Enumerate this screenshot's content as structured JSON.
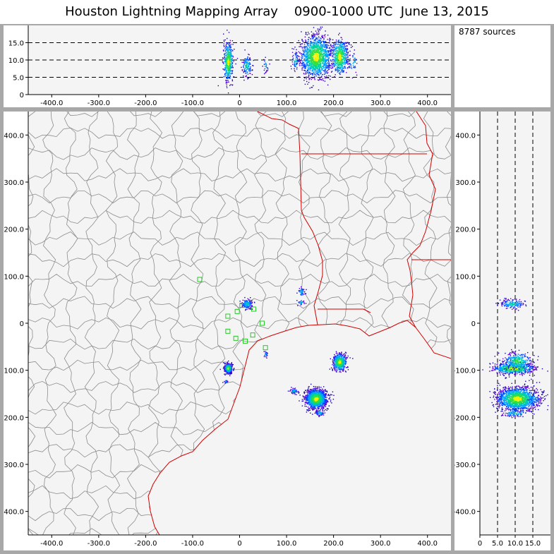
{
  "header": {
    "title": "Houston Lightning Mapping Array    0900-1000 UTC  June 13, 2015"
  },
  "stats": {
    "sources_label": "8787 sources"
  },
  "colors": {
    "panel_bg": "#ffffff",
    "plot_bg": "#f4f4f4",
    "frame": "#a8a8a8",
    "county_lines": "#8c8c8c",
    "state_coast_lines": "#d00000",
    "station_marker": "#22cc22",
    "density_scale": [
      "#1a00b0",
      "#5a00d8",
      "#0040ff",
      "#00a0ff",
      "#00d0a0",
      "#30e040",
      "#f0f000"
    ]
  },
  "chart_data": [
    {
      "name": "altitude-vs-east-west",
      "type": "scatter",
      "xlim": [
        -450,
        450
      ],
      "ylim": [
        0,
        20
      ],
      "x_ticks": [
        "-400.0",
        "-300.0",
        "-200.0",
        "-100.0",
        "0",
        "100.0",
        "200.0",
        "300.0",
        "400.0"
      ],
      "x_tick_values": [
        -400,
        -300,
        -200,
        -100,
        0,
        100,
        200,
        300,
        400
      ],
      "y_ticks": [
        "0",
        "5.0",
        "10.0",
        "15.0"
      ],
      "y_tick_values": [
        0,
        5,
        10,
        15
      ],
      "reference_lines_y": [
        5,
        10,
        15
      ],
      "clusters": [
        {
          "x": -25,
          "y": 9.5,
          "sx": 5,
          "sy": 2.8,
          "n": 500
        },
        {
          "x": 15,
          "y": 8.5,
          "sx": 5,
          "sy": 1.6,
          "n": 140
        },
        {
          "x": 55,
          "y": 8.5,
          "sx": 3,
          "sy": 1,
          "n": 30
        },
        {
          "x": 118,
          "y": 10,
          "sx": 4,
          "sy": 1.5,
          "n": 60
        },
        {
          "x": 162,
          "y": 11,
          "sx": 16,
          "sy": 3,
          "n": 1400
        },
        {
          "x": 212,
          "y": 11,
          "sx": 9,
          "sy": 2.5,
          "n": 550
        },
        {
          "x": 240,
          "y": 9.5,
          "sx": 6,
          "sy": 1.5,
          "n": 40
        }
      ]
    },
    {
      "name": "plan-view",
      "type": "scatter",
      "xlim": [
        -450,
        450
      ],
      "ylim": [
        -450,
        450
      ],
      "x_ticks": [
        "-400.0",
        "-300.0",
        "-200.0",
        "-100.0",
        "0",
        "100.0",
        "200.0",
        "300.0",
        "400.0"
      ],
      "x_tick_values": [
        -400,
        -300,
        -200,
        -100,
        0,
        100,
        200,
        300,
        400
      ],
      "y_ticks": [
        "-400.0",
        "-300.0",
        "-200.0",
        "-100.0",
        "0",
        "100.0",
        "200.0",
        "300.0",
        "400.0"
      ],
      "y_tick_values": [
        -400,
        -300,
        -200,
        -100,
        0,
        100,
        200,
        300,
        400
      ],
      "clusters": [
        {
          "x": -25,
          "y": -95,
          "sx": 4,
          "sy": 5,
          "n": 450
        },
        {
          "x": -30,
          "y": -123,
          "sx": 2,
          "sy": 2,
          "n": 25
        },
        {
          "x": 15,
          "y": 42,
          "sx": 6,
          "sy": 5,
          "n": 140
        },
        {
          "x": 55,
          "y": -65,
          "sx": 2,
          "sy": 3,
          "n": 25
        },
        {
          "x": 130,
          "y": 68,
          "sx": 4,
          "sy": 5,
          "n": 50
        },
        {
          "x": 130,
          "y": 45,
          "sx": 4,
          "sy": 3,
          "n": 30
        },
        {
          "x": 162,
          "y": -160,
          "sx": 11,
          "sy": 10,
          "n": 1500
        },
        {
          "x": 115,
          "y": -143,
          "sx": 4,
          "sy": 3,
          "n": 60
        },
        {
          "x": 212,
          "y": -82,
          "sx": 7,
          "sy": 9,
          "n": 550
        },
        {
          "x": 170,
          "y": -190,
          "sx": 5,
          "sy": 3,
          "n": 60
        }
      ],
      "stations": [
        {
          "x": -85,
          "y": 93
        },
        {
          "x": -25,
          "y": 15
        },
        {
          "x": -5,
          "y": 25
        },
        {
          "x": 5,
          "y": 38
        },
        {
          "x": 30,
          "y": 30
        },
        {
          "x": -25,
          "y": -17
        },
        {
          "x": -8,
          "y": -32
        },
        {
          "x": 12,
          "y": -38
        },
        {
          "x": 28,
          "y": -25
        },
        {
          "x": 48,
          "y": 0
        },
        {
          "x": 55,
          "y": -52
        }
      ]
    },
    {
      "name": "north-south-vs-altitude",
      "type": "scatter",
      "xlim": [
        0,
        20
      ],
      "ylim": [
        -450,
        450
      ],
      "x_ticks": [
        "0",
        "5.0",
        "10.0",
        "15.0"
      ],
      "x_tick_values": [
        0,
        5,
        10,
        15
      ],
      "y_ticks": [
        "-400.0",
        "-300.0",
        "-200.0",
        "-100.0",
        "0",
        "100.0",
        "200.0",
        "300.0",
        "400.0"
      ],
      "y_tick_values": [
        -400,
        -300,
        -200,
        -100,
        0,
        100,
        200,
        300,
        400
      ],
      "reference_lines_x": [
        5,
        10,
        15
      ],
      "clusters": [
        {
          "x": 9,
          "y": 42,
          "sx": 1.6,
          "sy": 5,
          "n": 160
        },
        {
          "x": 9.5,
          "y": -95,
          "sx": 2.8,
          "sy": 6,
          "n": 700
        },
        {
          "x": 10.5,
          "y": -80,
          "sx": 2,
          "sy": 9,
          "n": 300
        },
        {
          "x": 10.5,
          "y": -160,
          "sx": 2.8,
          "sy": 12,
          "n": 1500
        },
        {
          "x": 10,
          "y": -190,
          "sx": 2,
          "sy": 4,
          "n": 100
        },
        {
          "x": 15.5,
          "y": -160,
          "sx": 1,
          "sy": 6,
          "n": 40
        }
      ]
    }
  ]
}
